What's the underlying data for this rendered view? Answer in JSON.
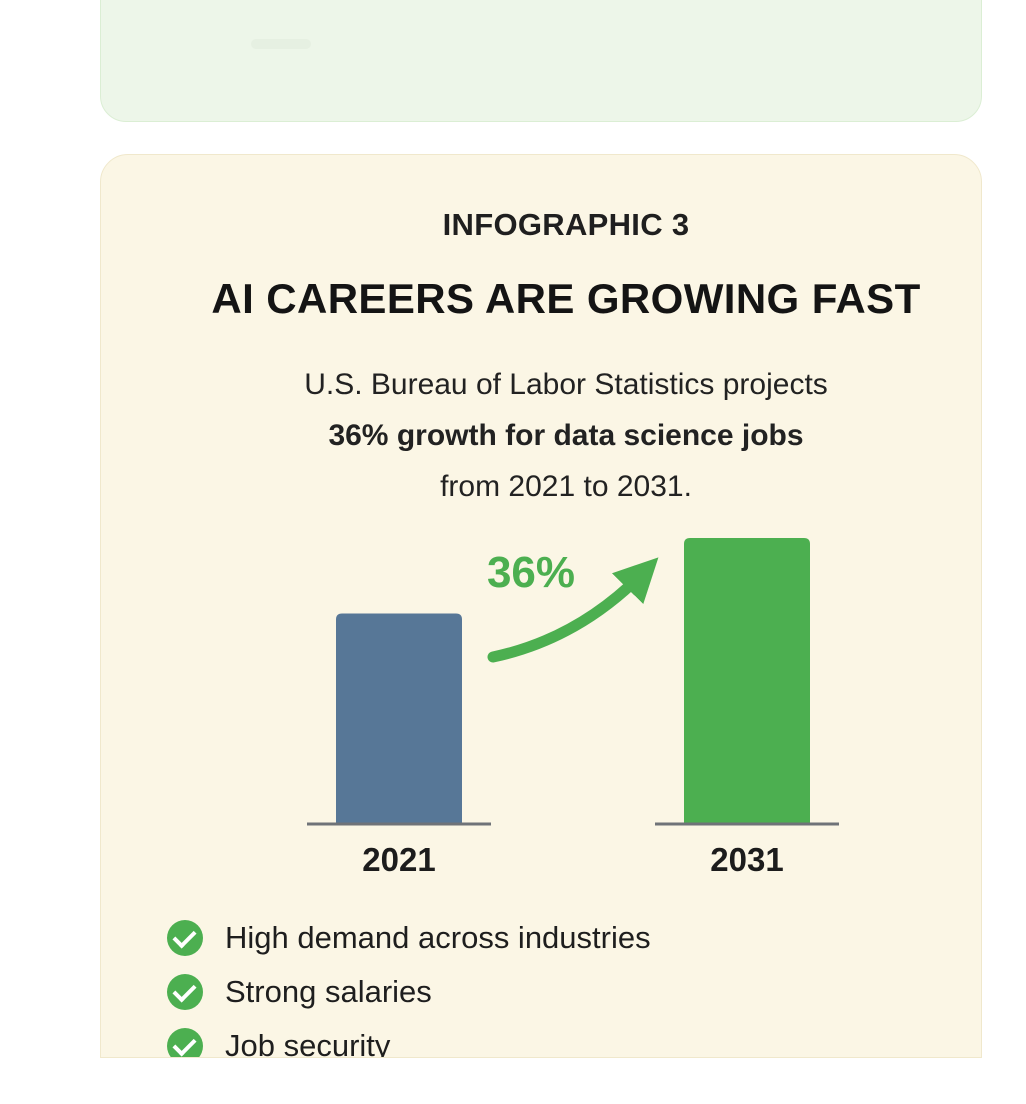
{
  "infographic": {
    "kicker": "INFOGRAPHIC 3",
    "title": "AI CAREERS ARE GROWING FAST",
    "description": {
      "line1": "U.S. Bureau of Labor Statistics projects",
      "line2_bold": "36% growth for data science jobs",
      "line3": "from 2021 to 2031."
    },
    "growth_label": "36%",
    "benefits": [
      "High demand across industries",
      "Strong salaries",
      "Job security"
    ]
  },
  "colors": {
    "bar_2021": "#577797",
    "bar_2031": "#4caf50",
    "arrow": "#4caf50",
    "check": "#4caf50",
    "card_bg": "#fbf6e5"
  },
  "chart_data": {
    "type": "bar",
    "categories": [
      "2021",
      "2031"
    ],
    "values": [
      100,
      136
    ],
    "annotations": [
      "36%"
    ],
    "ylim": [
      0,
      136
    ],
    "grid": false,
    "legend": "none"
  }
}
